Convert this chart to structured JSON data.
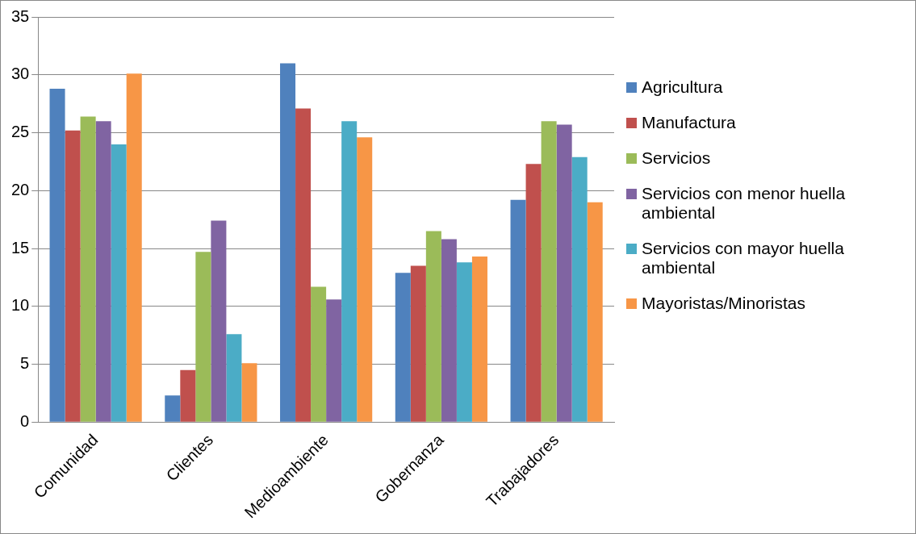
{
  "chart_data": {
    "type": "bar",
    "categories": [
      "Comunidad",
      "Clientes",
      "Medioambiente",
      "Gobernanza",
      "Trabajadores"
    ],
    "series": [
      {
        "name": "Agricultura",
        "color": "#4f81bd",
        "values": [
          28.8,
          2.3,
          31.0,
          12.9,
          19.2
        ]
      },
      {
        "name": "Manufactura",
        "color": "#c0504d",
        "values": [
          25.2,
          4.5,
          27.1,
          13.5,
          22.3
        ]
      },
      {
        "name": "Servicios",
        "color": "#9bbb59",
        "values": [
          26.4,
          14.7,
          11.7,
          16.5,
          26.0
        ]
      },
      {
        "name": "Servicios con menor huella ambiental",
        "color": "#8064a2",
        "values": [
          26.0,
          17.4,
          10.6,
          15.8,
          25.7
        ]
      },
      {
        "name": "Servicios con mayor huella ambiental",
        "color": "#4bacc6",
        "values": [
          24.0,
          7.6,
          26.0,
          13.8,
          22.9
        ]
      },
      {
        "name": "Mayoristas/Minoristas",
        "color": "#f79646",
        "values": [
          30.1,
          5.1,
          24.6,
          14.3,
          19.0
        ]
      }
    ],
    "ylim": [
      0,
      35
    ],
    "yticks": [
      0,
      5,
      10,
      15,
      20,
      25,
      30,
      35
    ],
    "grid": "y",
    "legend": "right"
  }
}
